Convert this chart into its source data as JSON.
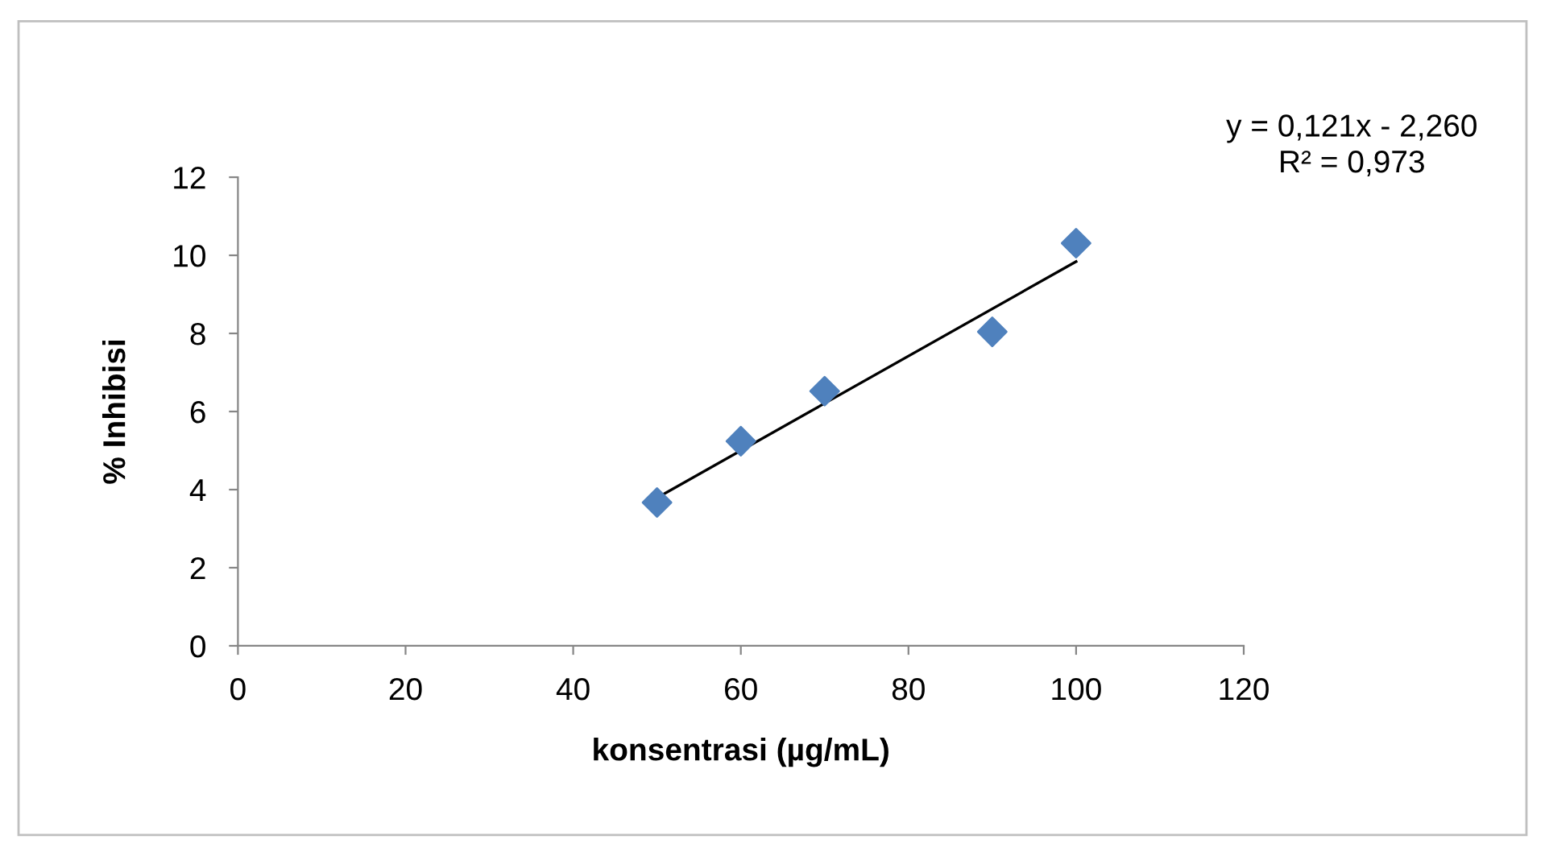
{
  "chart_data": {
    "type": "scatter",
    "xlabel": "konsentrasi (µg/mL)",
    "ylabel": "% Inhibisi",
    "annotations": [
      "y = 0,121x - 2,260\nR² = 0,973"
    ],
    "series": [
      {
        "color": "#4f81bd",
        "marker": "diamond",
        "x": [
          50,
          60,
          70,
          90,
          100
        ],
        "values": [
          3.67,
          5.24,
          6.52,
          8.04,
          10.31
        ]
      },
      {
        "type": "line",
        "color": "#000000",
        "marker": "none",
        "line_style": "solid",
        "x": [
          50,
          100
        ],
        "values": [
          3.79,
          9.84
        ]
      }
    ],
    "xlim": [
      0,
      120
    ],
    "xticks": [
      0,
      20,
      40,
      60,
      80,
      100,
      120
    ],
    "ylim": [
      0,
      12
    ],
    "yticks": [
      0,
      2,
      4,
      6,
      8,
      10,
      12
    ],
    "grid": false,
    "legend": false
  }
}
